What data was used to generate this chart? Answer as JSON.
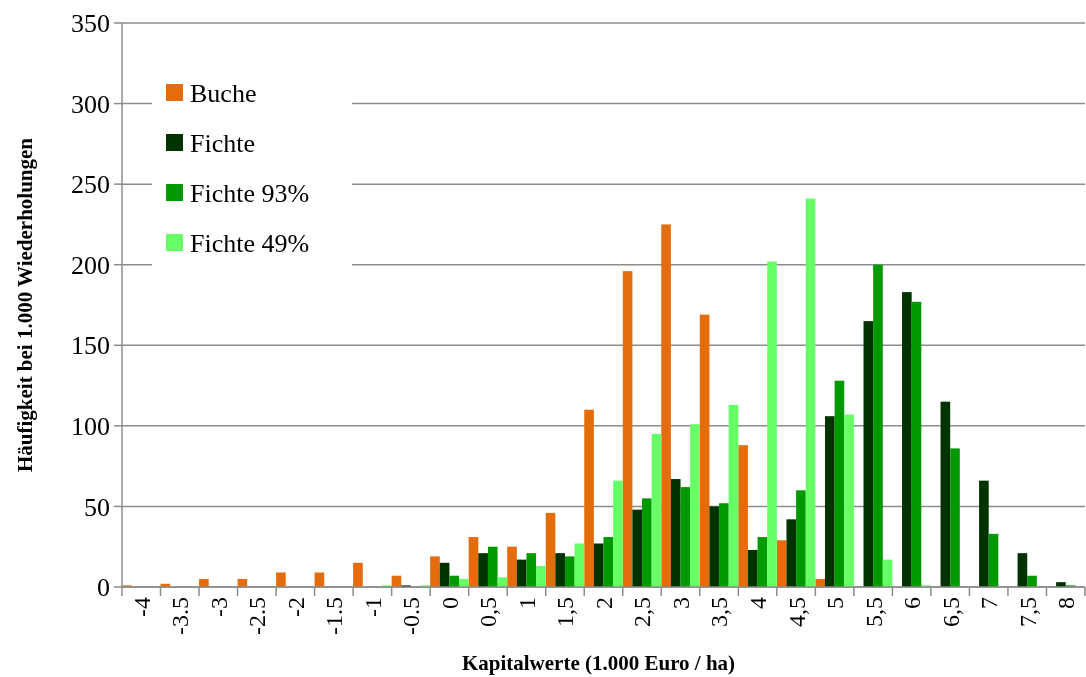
{
  "chart_data": {
    "type": "bar",
    "xlabel": "Kapitalwerte (1.000 Euro / ha)",
    "ylabel": "Häufigkeit bei 1.000 Wiederholungen",
    "categories": [
      "-4",
      "-3.5",
      "-3",
      "-2.5",
      "-2",
      "-1.5",
      "-1",
      "-0.5",
      "0",
      "0,5",
      "1",
      "1,5",
      "2",
      "2,5",
      "3",
      "3,5",
      "4",
      "4,5",
      "5",
      "5,5",
      "6",
      "6,5",
      "7",
      "7,5",
      "8"
    ],
    "series": [
      {
        "name": "Buche",
        "color": "#e46c0a",
        "values": [
          1,
          2,
          5,
          5,
          9,
          9,
          15,
          7,
          19,
          31,
          25,
          46,
          110,
          196,
          225,
          169,
          88,
          29,
          5,
          0,
          0,
          0,
          0,
          0,
          0
        ]
      },
      {
        "name": "Fichte",
        "color": "#003300",
        "values": [
          0,
          0,
          0,
          0,
          0,
          0,
          0,
          1,
          15,
          21,
          17,
          21,
          27,
          48,
          67,
          50,
          23,
          42,
          106,
          165,
          183,
          115,
          66,
          21,
          3
        ]
      },
      {
        "name": "Fichte 93%",
        "color": "#009900",
        "values": [
          0,
          0,
          0,
          0,
          0,
          0,
          0,
          0,
          7,
          25,
          21,
          19,
          31,
          55,
          62,
          52,
          31,
          60,
          128,
          200,
          177,
          86,
          33,
          7,
          1
        ]
      },
      {
        "name": "Fichte 49%",
        "color": "#66ff66",
        "values": [
          0,
          0,
          0,
          0,
          0,
          0,
          1,
          1,
          5,
          6,
          13,
          27,
          66,
          95,
          101,
          113,
          202,
          241,
          107,
          17,
          1,
          0,
          0,
          0,
          0
        ]
      }
    ],
    "ylim": [
      0,
      350
    ],
    "yticks": [
      0,
      50,
      100,
      150,
      200,
      250,
      300,
      350
    ],
    "grid": "y",
    "legend": "top left"
  }
}
